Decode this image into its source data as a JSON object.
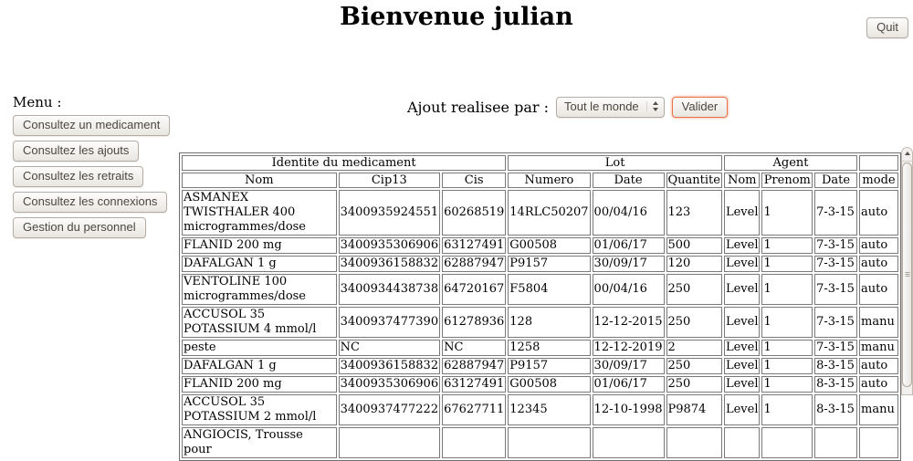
{
  "page": {
    "title": "Bienvenue julian",
    "quit_label": "Quit"
  },
  "menu": {
    "label": "Menu :",
    "items": [
      {
        "label": "Consultez un medicament"
      },
      {
        "label": "Consultez les ajouts"
      },
      {
        "label": "Consultez les retraits"
      },
      {
        "label": "Consultez les connexions"
      },
      {
        "label": "Gestion du personnel"
      }
    ]
  },
  "filter": {
    "label": "Ajout realisee par :",
    "select_value": "Tout le monde",
    "submit_label": "Valider"
  },
  "table": {
    "group_headers": [
      {
        "label": "Identite du medicament",
        "span": 3
      },
      {
        "label": "Lot",
        "span": 3
      },
      {
        "label": "Agent",
        "span": 3
      },
      {
        "label": "",
        "span": 1
      }
    ],
    "columns": [
      "Nom",
      "Cip13",
      "Cis",
      "Numero",
      "Date",
      "Quantite",
      "Nom",
      "Prenom",
      "Date",
      "mode"
    ],
    "rows": [
      [
        "ASMANEX TWISTHALER 400 microgrammes/dose",
        "3400935924551",
        "60268519",
        "14RLC50207",
        "00/04/16",
        "123",
        "Level",
        "1",
        "7-3-15",
        "auto"
      ],
      [
        "FLANID 200 mg",
        "3400935306906",
        "63127491",
        "G00508",
        "01/06/17",
        "500",
        "Level",
        "1",
        "7-3-15",
        "auto"
      ],
      [
        "DAFALGAN 1 g",
        "3400936158832",
        "62887947",
        "P9157",
        "30/09/17",
        "120",
        "Level",
        "1",
        "7-3-15",
        "auto"
      ],
      [
        "VENTOLINE 100 microgrammes/dose",
        "3400934438738",
        "64720167",
        "F5804",
        "00/04/16",
        "250",
        "Level",
        "1",
        "7-3-15",
        "auto"
      ],
      [
        "ACCUSOL 35 POTASSIUM 4 mmol/l",
        "3400937477390",
        "61278936",
        "128",
        "12-12-2015",
        "250",
        "Level",
        "1",
        "7-3-15",
        "manu"
      ],
      [
        "peste",
        "NC",
        "NC",
        "1258",
        "12-12-2019",
        "2",
        "Level",
        "1",
        "7-3-15",
        "manu"
      ],
      [
        "DAFALGAN 1 g",
        "3400936158832",
        "62887947",
        "P9157",
        "30/09/17",
        "250",
        "Level",
        "1",
        "8-3-15",
        "auto"
      ],
      [
        "FLANID 200 mg",
        "3400935306906",
        "63127491",
        "G00508",
        "01/06/17",
        "250",
        "Level",
        "1",
        "8-3-15",
        "auto"
      ],
      [
        "ACCUSOL 35 POTASSIUM 2 mmol/l",
        "3400937477222",
        "67627711",
        "12345",
        "12-10-1998",
        "P9874",
        "Level",
        "1",
        "8-3-15",
        "manu"
      ],
      [
        "ANGIOCIS, Trousse pour",
        "",
        "",
        "",
        "",
        "",
        "",
        "",
        "",
        ""
      ]
    ]
  },
  "colors": {
    "accent_orange": "#e8714a",
    "button_text": "#4c463f",
    "table_border": "#7a7a7a",
    "background": "#ffffff"
  }
}
